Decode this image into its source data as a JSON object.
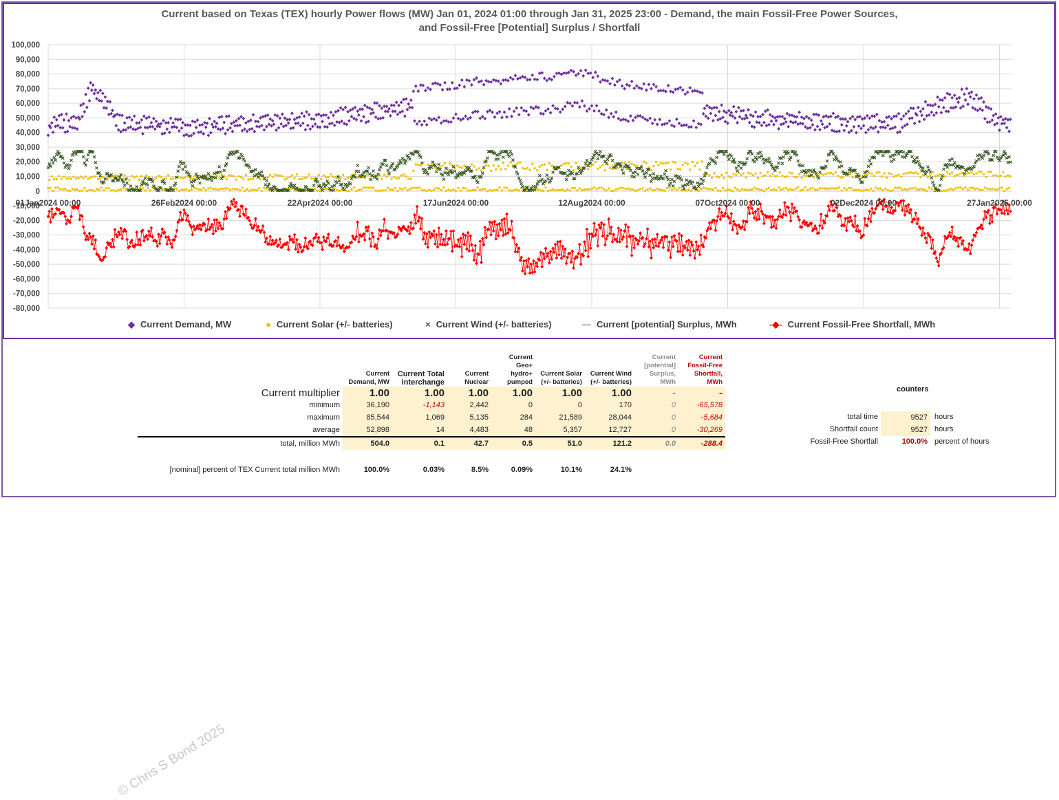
{
  "title_line1": "Current  based on Texas (TEX) hourly Power flows (MW) Jan 01, 2024 01:00 through Jan 31, 2025 23:00 - Demand, the main Fossil-Free Power Sources,",
  "title_line2": "and Fossil-Free [Potential] Surplus / Shortfall",
  "chart_data": {
    "type": "scatter",
    "x_ticks": [
      "01Jan2024 00:00",
      "26Feb2024 00:00",
      "22Apr2024 00:00",
      "17Jun2024 00:00",
      "12Aug2024 00:00",
      "07Oct2024 00:00",
      "02Dec2024 00:00",
      "27Jan2025 00:00"
    ],
    "y_ticks": [
      "100,000",
      "90,000",
      "80,000",
      "70,000",
      "60,000",
      "50,000",
      "40,000",
      "30,000",
      "20,000",
      "10,000",
      "0",
      "-10,000",
      "-20,000",
      "-30,000",
      "-40,000",
      "-50,000",
      "-60,000",
      "-70,000",
      "-80,000"
    ],
    "ylim": [
      -80000,
      100000
    ],
    "grid": true,
    "legend_position": "bottom",
    "series": [
      {
        "name": "Current Demand, MW",
        "color": "#7030a0",
        "marker": "diamond",
        "summary": {
          "min": 36190,
          "max": 85544,
          "avg": 52898
        }
      },
      {
        "name": "Current Solar (+/- batteries)",
        "color": "#f2c200",
        "marker": "dot",
        "summary": {
          "min": 0,
          "max": 21589,
          "avg": 5357
        }
      },
      {
        "name": "Current Wind (+/- batteries)",
        "color": "#385723",
        "marker": "x",
        "summary": {
          "min": 170,
          "max": 28044,
          "avg": 12727
        }
      },
      {
        "name": "Current [potential] Surplus, MWh",
        "color": "#808080",
        "marker": "dash",
        "summary": {
          "min": 0,
          "max": 0,
          "avg": 0
        }
      },
      {
        "name": "Current Fossil-Free Shortfall, MWh",
        "color": "#ff0000",
        "marker": "diamond",
        "summary": {
          "min": -65578,
          "max": -5684,
          "avg": -30269
        }
      }
    ]
  },
  "table": {
    "headers": [
      "Current Demand, MW",
      "Current Total interchange",
      "Current Nuclear",
      "Current Geo+ hydro+ pumped",
      "Current Solar (+/- batteries)",
      "Current Wind (+/- batteries)",
      "Current [potential] Surplus, MWh",
      "Current Fossil-Free Shortfall, MWh"
    ],
    "rows": [
      {
        "label": "Current multiplier",
        "values": [
          "1.00",
          "1.00",
          "1.00",
          "1.00",
          "1.00",
          "1.00",
          "-",
          "-"
        ]
      },
      {
        "label": "minimum",
        "values": [
          "36,190",
          "-1,143",
          "2,442",
          "0",
          "0",
          "170",
          "0",
          "-65,578"
        ]
      },
      {
        "label": "maximum",
        "values": [
          "85,544",
          "1,069",
          "5,135",
          "284",
          "21,589",
          "28,044",
          "0",
          "-5,684"
        ]
      },
      {
        "label": "average",
        "values": [
          "52,898",
          "14",
          "4,483",
          "48",
          "5,357",
          "12,727",
          "0",
          "-30,269"
        ]
      },
      {
        "label": "total, million MWh",
        "values": [
          "504.0",
          "0.1",
          "42.7",
          "0.5",
          "51.0",
          "121.2",
          "0.0",
          "-288.4"
        ]
      }
    ],
    "percent_label": "[nominal] percent of TEX Current total million MWh",
    "percent_values": [
      "100.0%",
      "0.03%",
      "8.5%",
      "0.09%",
      "10.1%",
      "24.1%"
    ]
  },
  "counters": {
    "title": "counters",
    "rows": [
      {
        "label": "total time",
        "value": "9527",
        "unit": "hours"
      },
      {
        "label": "Shortfall count",
        "value": "9527",
        "unit": "hours"
      },
      {
        "label": "Fossil-Free Shortfall",
        "value": "100.0%",
        "unit": "percent of hours"
      }
    ]
  },
  "watermark": "© Chris S Bond  2025"
}
